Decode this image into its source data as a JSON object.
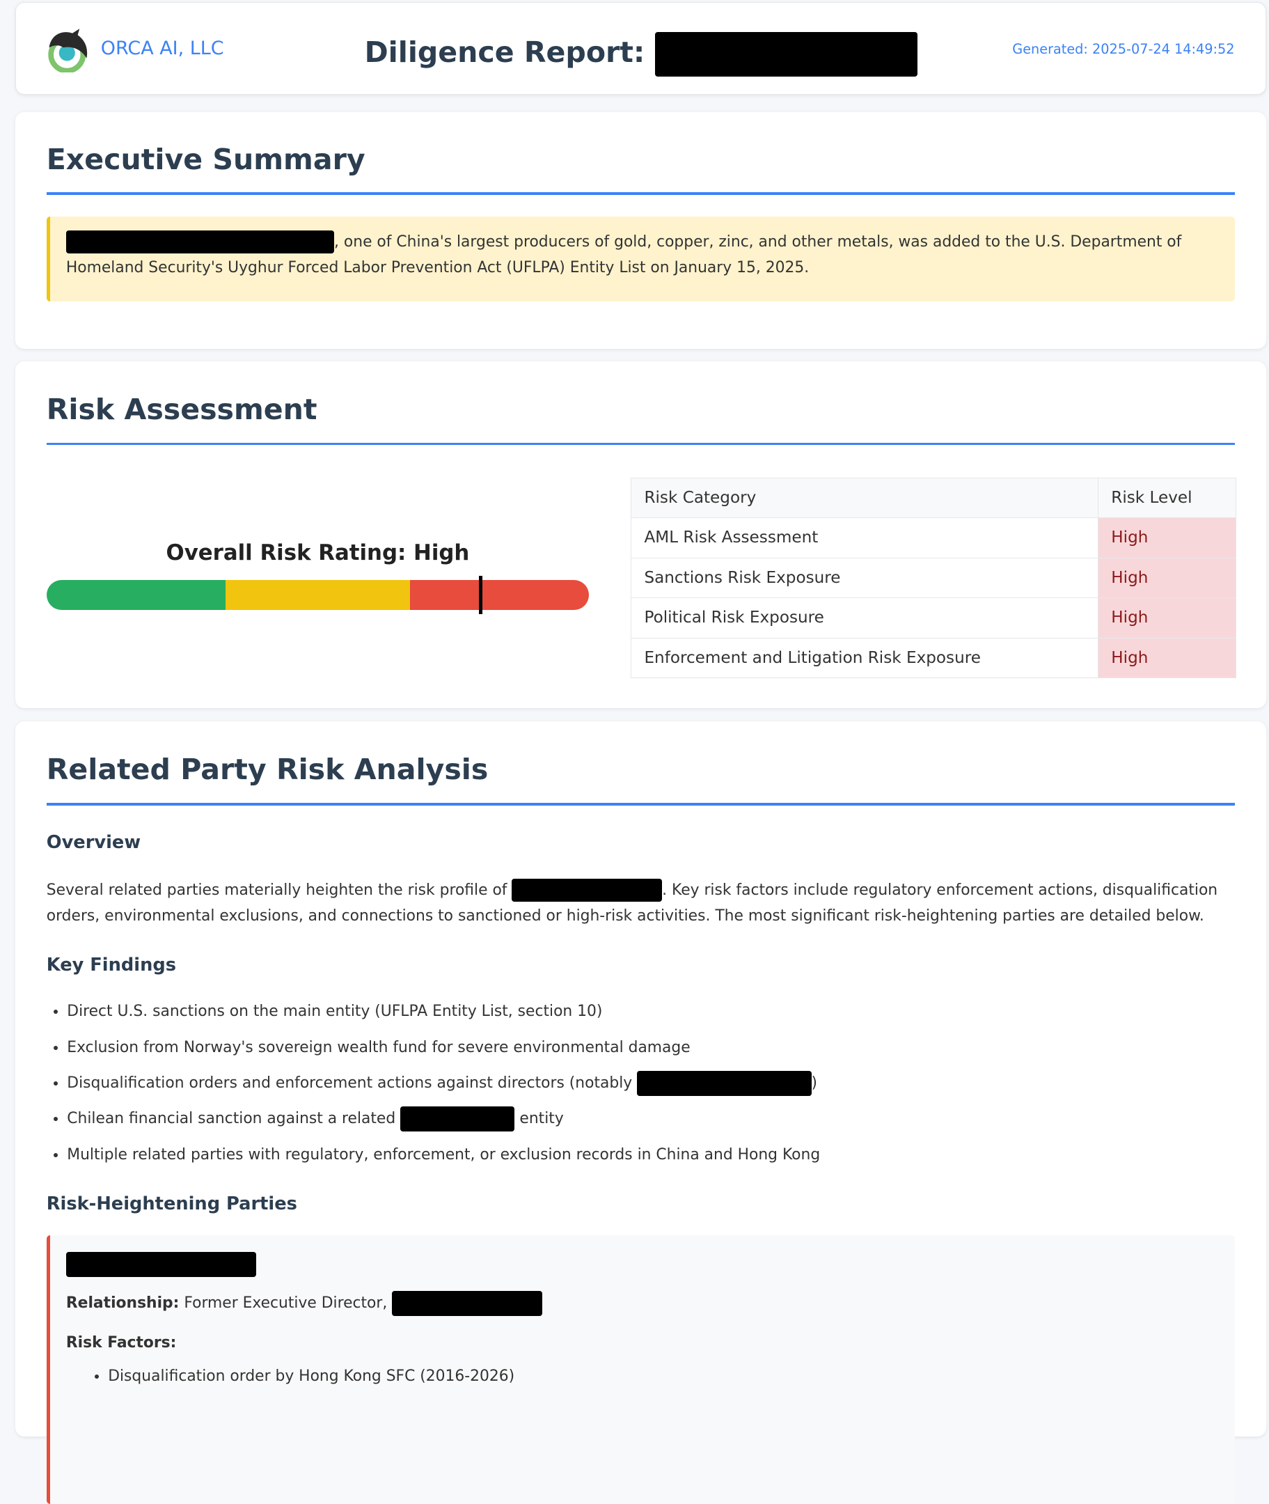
{
  "header": {
    "brand": "ORCA AI, LLC",
    "title": "Diligence Report:",
    "generated": "Generated: 2025-07-24 14:49:52"
  },
  "executive_summary": {
    "heading": "Executive Summary",
    "text": ", one of China's largest producers of gold, copper, zinc, and other metals, was added to the U.S. Department of Homeland Security's Uyghur Forced Labor Prevention Act (UFLPA) Entity List on January 15, 2025."
  },
  "risk_assessment": {
    "heading": "Risk Assessment",
    "overall_rating": "Overall Risk Rating: High",
    "gauge_level_percent": 80,
    "gauge_colors": [
      "#27ae60",
      "#f1c40f",
      "#e74c3c"
    ],
    "table": {
      "headers": [
        "Risk Category",
        "Risk Level"
      ],
      "rows": [
        {
          "category": "AML Risk Assessment",
          "level": "High"
        },
        {
          "category": "Sanctions Risk Exposure",
          "level": "High"
        },
        {
          "category": "Political Risk Exposure",
          "level": "High"
        },
        {
          "category": "Enforcement and Litigation Risk Exposure",
          "level": "High"
        }
      ]
    }
  },
  "related_party": {
    "heading": "Related Party Risk Analysis",
    "overview_heading": "Overview",
    "overview_before": "Several related parties materially heighten the risk profile of ",
    "overview_after": ". Key risk factors include regulatory enforcement actions, disqualification orders, environmental exclusions, and connections to sanctioned or high-risk activities. The most significant risk-heightening parties are detailed below.",
    "key_findings_heading": "Key Findings",
    "findings": [
      "Direct U.S. sanctions on the main entity (UFLPA Entity List, section 10)",
      "Exclusion from Norway's sovereign wealth fund for severe environmental damage",
      "Disqualification orders and enforcement actions against directors (notably ",
      ")",
      "Chilean financial sanction against a related ",
      " entity",
      "Multiple related parties with regulatory, enforcement, or exclusion records in China and Hong Kong"
    ],
    "parties_heading": "Risk-Heightening Parties",
    "party": {
      "relationship_label": "Relationship:",
      "relationship": " Former Executive Director, ",
      "risk_factors_label": "Risk Factors:",
      "factors": [
        "Disqualification order by Hong Kong SFC (2016-2026)"
      ]
    }
  }
}
